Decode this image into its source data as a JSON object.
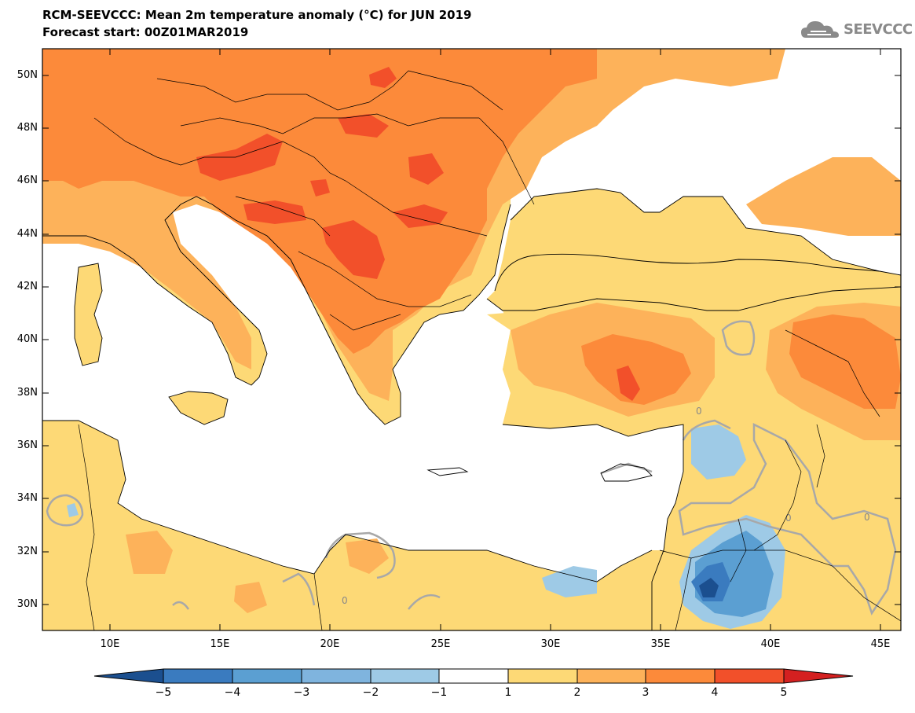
{
  "header": {
    "title": "RCM-SEEVCCC: Mean 2m temperature anomaly (°C) for JUN 2019",
    "subtitle": "Forecast start: 00Z01MAR2019",
    "logo_text": "SEEVCCC"
  },
  "axes": {
    "lat_labels": [
      "50N",
      "48N",
      "46N",
      "44N",
      "42N",
      "40N",
      "38N",
      "36N",
      "34N",
      "32N",
      "30N"
    ],
    "lon_labels": [
      "10E",
      "15E",
      "20E",
      "25E",
      "30E",
      "35E",
      "40E",
      "45E"
    ]
  },
  "colorbar": {
    "ticks": [
      "−5",
      "−4",
      "−3",
      "−2",
      "−1",
      "1",
      "2",
      "3",
      "4",
      "5"
    ],
    "colors": [
      "#1b4f8f",
      "#3a7bbf",
      "#5b9fd2",
      "#9ecae6",
      "#ffffff",
      "#fdd976",
      "#fdb25a",
      "#fc8a3a",
      "#f2502a",
      "#d42020"
    ],
    "contour_label": "0"
  },
  "colors": {
    "sea": "#ffffff",
    "light_orange": "#fdd976",
    "mid_orange": "#fdb25a",
    "orange": "#fc8a3a",
    "red_orange": "#f2502a",
    "light_blue": "#9ecae6",
    "mid_blue": "#5b9fd2",
    "dark_blue": "#1b4f8f",
    "contour_zero": "#a8a8a8"
  }
}
